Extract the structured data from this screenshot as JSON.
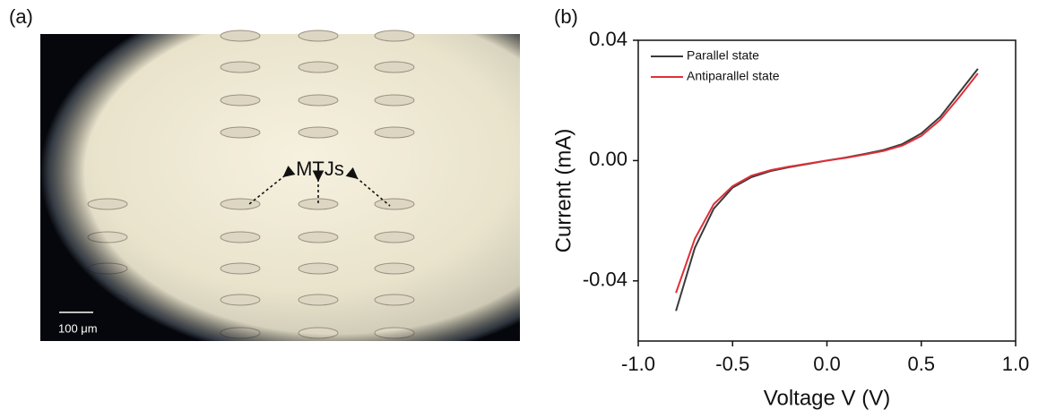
{
  "panel_a": {
    "label": "(a)",
    "annotation": "MTJs",
    "scale_bar": "100 μm"
  },
  "panel_b_label": "(b)",
  "chart_data": {
    "type": "line",
    "x_label": "Voltage V (V)",
    "y_label": "Current (mA)",
    "x": [
      -0.8,
      -0.7,
      -0.6,
      -0.5,
      -0.4,
      -0.3,
      -0.2,
      -0.1,
      0,
      0.1,
      0.2,
      0.3,
      0.4,
      0.5,
      0.6,
      0.7,
      0.8
    ],
    "series": [
      {
        "name": "Parallel state",
        "color": "#3a3a3a",
        "values": [
          -0.05,
          -0.029,
          -0.016,
          -0.009,
          -0.0055,
          -0.0035,
          -0.0022,
          -0.0011,
          0,
          0.001,
          0.0022,
          0.0035,
          0.0055,
          0.009,
          0.0145,
          0.0225,
          0.0305
        ]
      },
      {
        "name": "Antiparallel state",
        "color": "#e0303a",
        "values": [
          -0.044,
          -0.026,
          -0.0145,
          -0.0085,
          -0.005,
          -0.0032,
          -0.002,
          -0.001,
          0,
          0.0009,
          0.002,
          0.0032,
          0.005,
          0.0082,
          0.0135,
          0.021,
          0.029
        ]
      }
    ],
    "xlim": [
      -1,
      1
    ],
    "xticks": [
      {
        "value": -1,
        "label": "-1.0"
      },
      -0.5,
      {
        "value": 0,
        "label": "0.0"
      },
      0.5,
      {
        "value": 1,
        "label": "1.0"
      }
    ],
    "ylim": [
      -0.06,
      0.04
    ],
    "yticks": [
      -0.04,
      {
        "value": 0,
        "label": "0.00"
      },
      0.04
    ],
    "legend": "top-left"
  }
}
